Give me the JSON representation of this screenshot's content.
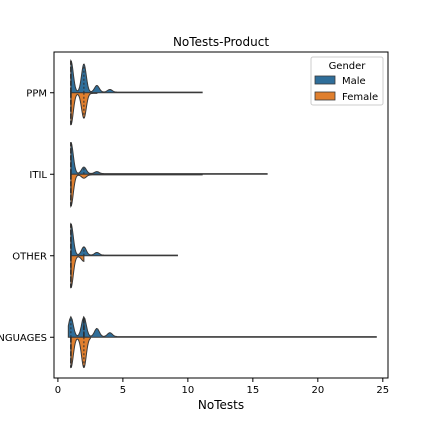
{
  "chart_data": {
    "type": "violin",
    "orientation": "horizontal",
    "split": true,
    "title": "NoTests-Product",
    "xlabel": "NoTests",
    "ylabel": "",
    "xlim": [
      -0.3,
      25.4
    ],
    "xticks": [
      0,
      5,
      10,
      15,
      20,
      25
    ],
    "categories": [
      "PPM",
      "ITIL",
      "OTHER",
      "LANGUAGES"
    ],
    "legend": {
      "title": "Gender",
      "placement": "top-right",
      "entries": [
        "Male",
        "Female"
      ]
    },
    "series": [
      {
        "name": "Male",
        "color": "#2f6e9a",
        "distributions": [
          {
            "category": "PPM",
            "range": [
              1,
              11.1
            ],
            "modes": [
              {
                "x": 1,
                "weight": 0.95
              },
              {
                "x": 2,
                "weight": 0.85
              },
              {
                "x": 3,
                "weight": 0.2
              },
              {
                "x": 4,
                "weight": 0.08
              }
            ],
            "quartiles": [
              1,
              1,
              2
            ]
          },
          {
            "category": "ITIL",
            "range": [
              1,
              16.1
            ],
            "modes": [
              {
                "x": 1,
                "weight": 0.95
              },
              {
                "x": 2,
                "weight": 0.2
              },
              {
                "x": 3,
                "weight": 0.06
              }
            ],
            "quartiles": [
              1,
              1,
              2
            ]
          },
          {
            "category": "OTHER",
            "range": [
              1,
              9.2
            ],
            "modes": [
              {
                "x": 1,
                "weight": 0.95
              },
              {
                "x": 2,
                "weight": 0.25
              },
              {
                "x": 3,
                "weight": 0.08
              }
            ],
            "quartiles": [
              1,
              1,
              2
            ]
          },
          {
            "category": "LANGUAGES",
            "range": [
              0.8,
              24.5
            ],
            "modes": [
              {
                "x": 1,
                "weight": 0.6
              },
              {
                "x": 2,
                "weight": 0.6
              },
              {
                "x": 3,
                "weight": 0.25
              },
              {
                "x": 4,
                "weight": 0.12
              }
            ],
            "quartiles": [
              1,
              2,
              2
            ]
          }
        ]
      },
      {
        "name": "Female",
        "color": "#e07f2e",
        "distributions": [
          {
            "category": "PPM",
            "range": [
              1,
              3.0
            ],
            "modes": [
              {
                "x": 1,
                "weight": 0.95
              },
              {
                "x": 2,
                "weight": 0.75
              }
            ],
            "quartiles": [
              1,
              1,
              2
            ]
          },
          {
            "category": "ITIL",
            "range": [
              1,
              11.1
            ],
            "modes": [
              {
                "x": 1,
                "weight": 0.95
              },
              {
                "x": 2,
                "weight": 0.1
              }
            ],
            "quartiles": [
              1,
              1,
              1
            ]
          },
          {
            "category": "OTHER",
            "range": [
              1,
              2.0
            ],
            "modes": [
              {
                "x": 1,
                "weight": 0.95
              },
              {
                "x": 2,
                "weight": 0.15
              }
            ],
            "quartiles": [
              1,
              1,
              1
            ]
          },
          {
            "category": "LANGUAGES",
            "range": [
              1,
              2.5
            ],
            "modes": [
              {
                "x": 1,
                "weight": 0.9
              },
              {
                "x": 2,
                "weight": 0.9
              }
            ],
            "quartiles": [
              1,
              1,
              2
            ]
          }
        ]
      }
    ]
  }
}
